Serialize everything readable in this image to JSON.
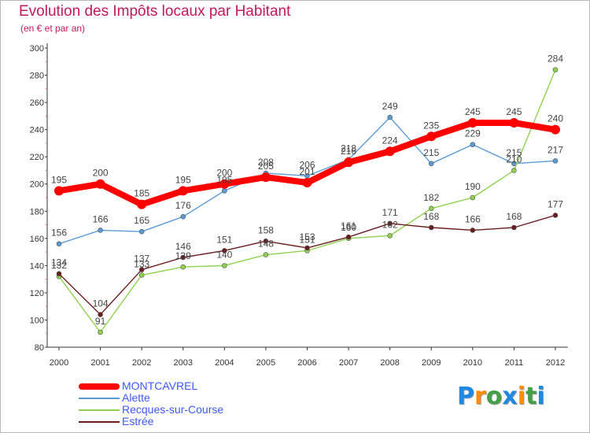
{
  "chart_data": {
    "type": "line",
    "title": "Evolution des Impôts locaux par Habitant",
    "subtitle": "(en € et par an)",
    "xlabel": "",
    "ylabel": "",
    "x": [
      "2000",
      "2001",
      "2002",
      "2003",
      "2004",
      "2005",
      "2006",
      "2007",
      "2008",
      "2009",
      "2010",
      "2011",
      "2012"
    ],
    "ylim": [
      80,
      300
    ],
    "yticks": [
      "80",
      "100",
      "120",
      "140",
      "160",
      "180",
      "200",
      "220",
      "240",
      "260",
      "280",
      "300"
    ],
    "grid": false,
    "legend_position": "bottom-left",
    "series": [
      {
        "name": "MONTCAVREL",
        "color": "#ff0000",
        "values": [
          195,
          200,
          185,
          195,
          200,
          205,
          201,
          216,
          224,
          235,
          245,
          245,
          240
        ]
      },
      {
        "name": "Alette",
        "color": "#5b9bd5",
        "values": [
          156,
          166,
          165,
          176,
          195,
          208,
          206,
          218,
          249,
          215,
          229,
          215,
          217
        ]
      },
      {
        "name": "Recques-sur-Course",
        "color": "#8fd14f",
        "values": [
          132,
          91,
          133,
          139,
          140,
          148,
          151,
          160,
          162,
          182,
          190,
          210,
          284
        ]
      },
      {
        "name": "Estrée",
        "color": "#6b1d1d",
        "values": [
          134,
          104,
          137,
          146,
          151,
          158,
          153,
          161,
          171,
          168,
          166,
          168,
          177
        ]
      }
    ]
  },
  "brand": {
    "letters": [
      {
        "ch": "P",
        "color": "#1e88e5"
      },
      {
        "ch": "r",
        "color": "#fb8c00"
      },
      {
        "ch": "o",
        "color": "#43a047"
      },
      {
        "ch": "x",
        "color": "#1e88e5"
      },
      {
        "ch": "i",
        "color": "#fb8c00"
      },
      {
        "ch": "t",
        "color": "#43a047"
      },
      {
        "ch": "i",
        "color": "#1e88e5"
      }
    ]
  }
}
